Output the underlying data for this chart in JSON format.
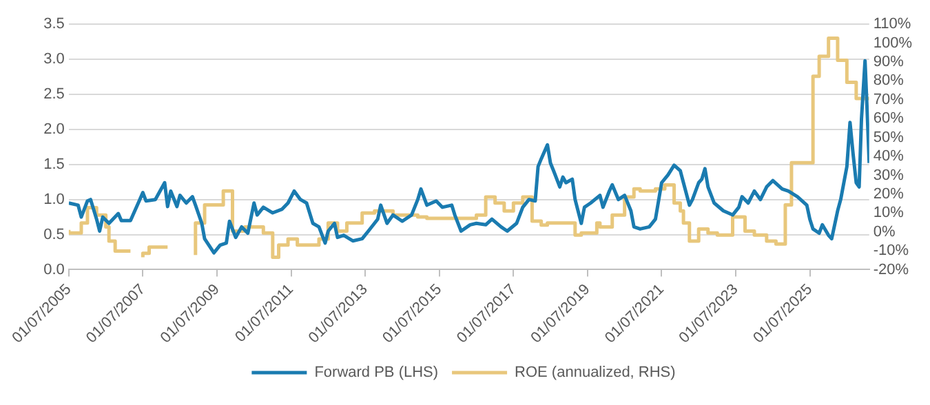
{
  "chart_data": {
    "type": "line",
    "xlim": [
      "2005-07-01",
      "2027-02-06"
    ],
    "xticks": [
      {
        "value": "2005-07-01",
        "label": "01/07/2005"
      },
      {
        "value": "2007-07-01",
        "label": "01/07/2007"
      },
      {
        "value": "2009-07-01",
        "label": "01/07/2009"
      },
      {
        "value": "2011-07-01",
        "label": "01/07/2011"
      },
      {
        "value": "2013-07-01",
        "label": "01/07/2013"
      },
      {
        "value": "2015-07-01",
        "label": "01/07/2015"
      },
      {
        "value": "2017-07-01",
        "label": "01/07/2017"
      },
      {
        "value": "2019-07-01",
        "label": "01/07/2019"
      },
      {
        "value": "2021-07-01",
        "label": "01/07/2021"
      },
      {
        "value": "2023-07-01",
        "label": "01/07/2023"
      },
      {
        "value": "2025-07-01",
        "label": "01/07/2025"
      }
    ],
    "ylim": [
      0,
      3.5
    ],
    "yticks": [
      {
        "value": 0,
        "label": "0.0"
      },
      0.5,
      {
        "value": 1,
        "label": "1.0"
      },
      1.5,
      {
        "value": 2,
        "label": "2.0"
      },
      2.5,
      {
        "value": 3,
        "label": "3.0"
      },
      3.5
    ],
    "y2lim": [
      -20,
      110
    ],
    "y2ticks": [
      {
        "value": -20,
        "label": "-20%"
      },
      {
        "value": -10,
        "label": "-10%"
      },
      {
        "value": 0,
        "label": "0%"
      },
      {
        "value": 10,
        "label": "10%"
      },
      {
        "value": 20,
        "label": "20%"
      },
      {
        "value": 30,
        "label": "30%"
      },
      {
        "value": 40,
        "label": "40%"
      },
      {
        "value": 50,
        "label": "50%"
      },
      {
        "value": 60,
        "label": "60%"
      },
      {
        "value": 70,
        "label": "70%"
      },
      {
        "value": 80,
        "label": "80%"
      },
      {
        "value": 90,
        "label": "90%"
      },
      {
        "value": 100,
        "label": "100%"
      },
      {
        "value": 110,
        "label": "110%"
      }
    ],
    "grid": "y",
    "legend": "bottom",
    "marker": "none",
    "series": [
      {
        "name": "Forward PB (LHS)",
        "color": "#1a7bb0",
        "x": [
          "2005-07",
          "2005-10",
          "2005-11",
          "2006-01",
          "2006-02",
          "2006-04",
          "2006-05",
          "2006-06",
          "2006-08",
          "2006-11",
          "2006-12",
          "2007-03",
          "2007-06",
          "2007-07",
          "2007-08",
          "2007-11",
          "2008-02",
          "2008-03",
          "2008-04",
          "2008-06",
          "2008-07",
          "2008-09",
          "2008-11",
          "2008-12",
          "2009-02",
          "2009-03",
          "2009-06",
          "2009-08",
          "2009-10",
          "2009-11",
          "2010-01",
          "2010-03",
          "2010-05",
          "2010-07",
          "2010-08",
          "2010-10",
          "2011-01",
          "2011-04",
          "2011-06",
          "2011-08",
          "2011-10",
          "2011-12",
          "2012-02",
          "2012-04",
          "2012-06",
          "2012-07",
          "2012-09",
          "2012-10",
          "2012-12",
          "2013-03",
          "2013-06",
          "2013-08",
          "2013-11",
          "2013-12",
          "2014-02",
          "2014-04",
          "2014-07",
          "2014-10",
          "2014-12",
          "2015-01",
          "2015-03",
          "2015-06",
          "2015-08",
          "2015-11",
          "2015-12",
          "2016-02",
          "2016-05",
          "2016-07",
          "2016-10",
          "2016-12",
          "2017-03",
          "2017-05",
          "2017-08",
          "2017-10",
          "2017-12",
          "2018-02",
          "2018-03",
          "2018-04",
          "2018-06",
          "2018-07",
          "2018-08",
          "2018-10",
          "2018-11",
          "2018-12",
          "2019-02",
          "2019-03",
          "2019-05",
          "2019-06",
          "2019-08",
          "2019-11",
          "2019-12",
          "2020-02",
          "2020-03",
          "2020-05",
          "2020-07",
          "2020-09",
          "2020-10",
          "2020-12",
          "2021-03",
          "2021-05",
          "2021-07",
          "2021-09",
          "2021-11",
          "2022-01",
          "2022-02",
          "2022-04",
          "2022-05",
          "2022-07",
          "2022-08",
          "2022-09",
          "2022-10",
          "2022-12",
          "2023-03",
          "2023-06",
          "2023-08",
          "2023-09",
          "2023-11",
          "2024-01",
          "2024-03",
          "2024-05",
          "2024-07",
          "2024-10",
          "2024-12",
          "2025-03",
          "2025-06",
          "2025-07",
          "2025-08",
          "2025-10",
          "2025-11",
          "2026-01",
          "2026-02",
          "2026-04",
          "2026-05",
          "2026-07",
          "2026-08",
          "2026-09",
          "2026-10",
          "2026-10-30",
          "2026-11-22",
          "2026-12-27",
          "2027-01-15",
          "2027-02-06"
        ],
        "values": [
          0.95,
          0.92,
          0.75,
          0.98,
          1.0,
          0.72,
          0.55,
          0.75,
          0.66,
          0.8,
          0.7,
          0.7,
          1.0,
          1.1,
          0.98,
          1.0,
          1.24,
          0.9,
          1.12,
          0.9,
          1.06,
          0.95,
          1.04,
          0.92,
          0.66,
          0.44,
          0.24,
          0.35,
          0.38,
          0.69,
          0.46,
          0.61,
          0.52,
          0.95,
          0.78,
          0.89,
          0.81,
          0.86,
          0.95,
          1.12,
          1.0,
          0.95,
          0.66,
          0.61,
          0.38,
          0.55,
          0.66,
          0.46,
          0.49,
          0.41,
          0.44,
          0.55,
          0.72,
          0.92,
          0.66,
          0.78,
          0.69,
          0.78,
          1.0,
          1.15,
          0.92,
          0.98,
          0.89,
          0.92,
          0.78,
          0.55,
          0.64,
          0.66,
          0.64,
          0.72,
          0.61,
          0.55,
          0.66,
          0.89,
          1.0,
          0.98,
          1.47,
          1.58,
          1.78,
          1.52,
          1.41,
          1.18,
          1.32,
          1.24,
          1.29,
          1.0,
          0.66,
          0.89,
          0.95,
          1.06,
          0.89,
          1.12,
          1.21,
          1.0,
          1.06,
          0.84,
          0.61,
          0.58,
          0.61,
          0.72,
          1.24,
          1.35,
          1.49,
          1.41,
          1.24,
          0.92,
          1.0,
          1.24,
          1.29,
          1.44,
          1.18,
          0.95,
          0.84,
          0.78,
          0.89,
          1.04,
          0.95,
          1.12,
          1.0,
          1.18,
          1.27,
          1.15,
          1.12,
          1.04,
          0.92,
          0.72,
          0.58,
          0.52,
          0.64,
          0.49,
          0.44,
          0.84,
          1.0,
          1.47,
          2.1,
          1.64,
          1.24,
          1.18,
          2.15,
          2.98,
          2.33,
          1.52
        ]
      },
      {
        "name": "ROE (annualized, RHS)",
        "type": "step",
        "axis": "y2",
        "color": "#e8c77c",
        "x": [
          "2005-07",
          "2005-11",
          "2006-01",
          "2006-04",
          "2006-07",
          "2006-08",
          "2006-10",
          "2007-01",
          "2007-03",
          "2007-04",
          "2007-07",
          "2007-09",
          "2007-11",
          "2008-03",
          "2008-04",
          "2008-12",
          "2009-03",
          "2009-09",
          "2009-12",
          "2010-04",
          "2010-10",
          "2011-01",
          "2011-03",
          "2011-06",
          "2011-09",
          "2012-04",
          "2012-07",
          "2012-10",
          "2013-01",
          "2013-06",
          "2013-10",
          "2014-04",
          "2014-12",
          "2015-03",
          "2016-07",
          "2016-10",
          "2017-01",
          "2017-04",
          "2017-07",
          "2017-10",
          "2018-01",
          "2018-04",
          "2018-06",
          "2019-03",
          "2019-05",
          "2019-10",
          "2019-11",
          "2020-03",
          "2020-07",
          "2020-10",
          "2020-12",
          "2021-05",
          "2021-08",
          "2021-11",
          "2022-01",
          "2022-02",
          "2022-04",
          "2022-07",
          "2022-10",
          "2023-01",
          "2023-06",
          "2023-10",
          "2024-01",
          "2024-05",
          "2024-08",
          "2024-11",
          "2025-01",
          "2025-08",
          "2025-10",
          "2026-01",
          "2026-04",
          "2026-07",
          "2026-10",
          "2026-12-15",
          "2027-02-06"
        ],
        "values": [
          1.1,
          -0.6,
          4.7,
          12.8,
          8.9,
          2.6,
          -4.9,
          -10.2,
          -10.2,
          null,
          -13.4,
          -11.3,
          -8.1,
          -8.1,
          null,
          -12.3,
          4.7,
          14.3,
          21.7,
          0.4,
          2.6,
          -0.6,
          -13.4,
          -7,
          -3.8,
          -7,
          -3.8,
          4.7,
          0.4,
          4.7,
          10,
          11.1,
          8.9,
          7.9,
          7.2,
          8.9,
          18.5,
          15.3,
          11.1,
          15.3,
          18.5,
          5.7,
          3.6,
          4.7,
          -1.7,
          -0.6,
          4.7,
          2.6,
          8.9,
          18.5,
          22.8,
          21.7,
          22.8,
          24.9,
          15.3,
          11.1,
          4.7,
          -4.9,
          1.5,
          -0.6,
          -1.7,
          7.9,
          0.4,
          -1.7,
          -4.9,
          -6.4,
          14.3,
          36.6,
          82.4,
          93,
          102.6,
          90.9,
          79.2,
          70.7,
          70.7
        ]
      }
    ]
  }
}
